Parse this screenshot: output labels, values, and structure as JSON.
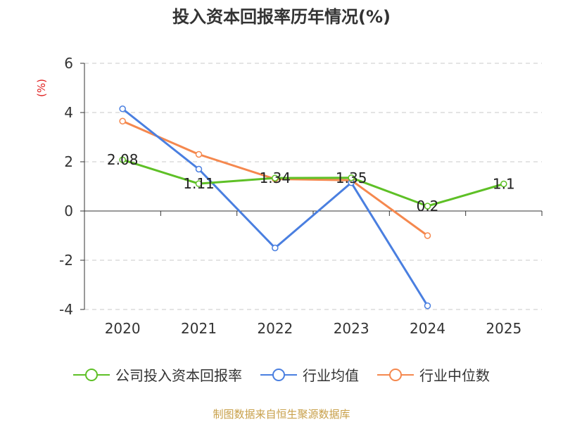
{
  "chart_data": {
    "type": "line",
    "title": "投入资本回报率历年情况(%)",
    "ylabel": "(%)",
    "categories": [
      "2020",
      "2021",
      "2022",
      "2023",
      "2024",
      "2025"
    ],
    "ylim": [
      -4,
      6
    ],
    "yticks": [
      "6",
      "4",
      "2",
      "0",
      "-2",
      "-4"
    ],
    "grid": true,
    "legend_position": "bottom",
    "series": [
      {
        "name": "公司投入资本回报率",
        "color": "#5ec026",
        "values": [
          2.08,
          1.11,
          1.34,
          1.35,
          0.2,
          1.1
        ],
        "labels": [
          "2.08",
          "1.11",
          "1.34",
          "1.35",
          "0.2",
          "1.1"
        ]
      },
      {
        "name": "行业均值",
        "color": "#4a7fe0",
        "values": [
          4.15,
          1.7,
          -1.5,
          1.15,
          -3.85,
          null
        ]
      },
      {
        "name": "行业中位数",
        "color": "#f5884e",
        "values": [
          3.65,
          2.3,
          1.3,
          1.25,
          -1.0,
          null
        ]
      }
    ]
  },
  "footer": "制图数据来自恒生聚源数据库"
}
